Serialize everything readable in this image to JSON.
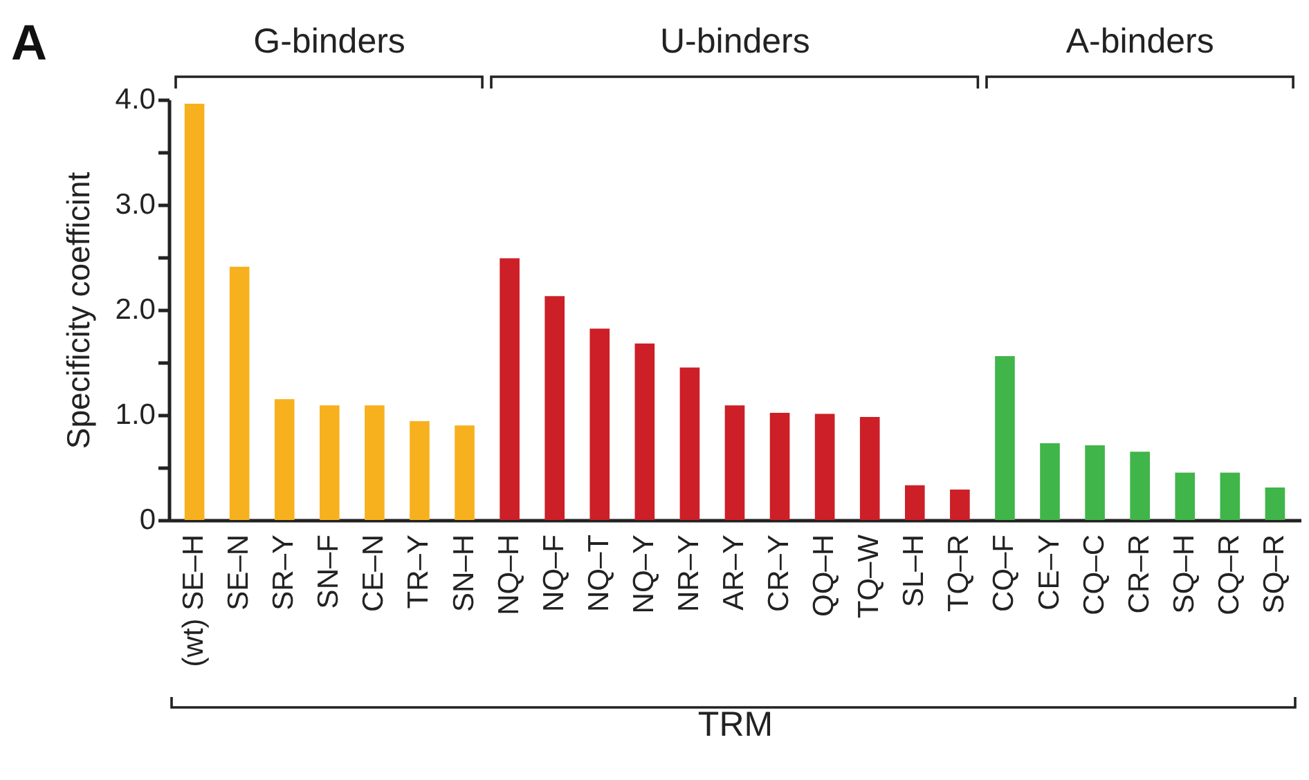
{
  "chart_data": {
    "type": "bar",
    "annotations": [
      "A",
      "G-binders",
      "U-binders",
      "A-binders"
    ],
    "xlabel": "TRM",
    "ylabel": "Specificity coefficint",
    "categories": [
      "(wt) SE–H",
      "SE–N",
      "SR–Y",
      "SN–F",
      "CE–N",
      "TR–Y",
      "SN–H",
      "NQ–H",
      "NQ–F",
      "NQ–T",
      "NQ–Y",
      "NR–Y",
      "AR–Y",
      "CR–Y",
      "QQ–H",
      "TQ–W",
      "SL–H",
      "TQ–R",
      "CQ–F",
      "CE–Y",
      "CQ–C",
      "CR–R",
      "SQ–H",
      "CQ–R",
      "SQ–R"
    ],
    "values": [
      3.96,
      2.41,
      1.15,
      1.09,
      1.09,
      0.94,
      0.9,
      2.49,
      2.13,
      1.82,
      1.68,
      1.45,
      1.09,
      1.02,
      1.01,
      0.98,
      0.33,
      0.29,
      1.56,
      0.73,
      0.71,
      0.65,
      0.45,
      0.45,
      0.31
    ],
    "colors": [
      "#f7b11e",
      "#f7b11e",
      "#f7b11e",
      "#f7b11e",
      "#f7b11e",
      "#f7b11e",
      "#f7b11e",
      "#cc1f27",
      "#cc1f27",
      "#cc1f27",
      "#cc1f27",
      "#cc1f27",
      "#cc1f27",
      "#cc1f27",
      "#cc1f27",
      "#cc1f27",
      "#cc1f27",
      "#cc1f27",
      "#40b549",
      "#40b549",
      "#40b549",
      "#40b549",
      "#40b549",
      "#40b549",
      "#40b549"
    ],
    "yticks": [
      0,
      {
        "value": 0.5,
        "label": null
      },
      {
        "value": 1,
        "label": "1.0"
      },
      {
        "value": 1.5,
        "label": null
      },
      {
        "value": 2,
        "label": "2.0"
      },
      {
        "value": 2.5,
        "label": null
      },
      {
        "value": 3,
        "label": "3.0"
      },
      {
        "value": 3.5,
        "label": null
      },
      {
        "value": 4,
        "label": "4.0"
      }
    ],
    "ylim": [
      0,
      4
    ]
  }
}
